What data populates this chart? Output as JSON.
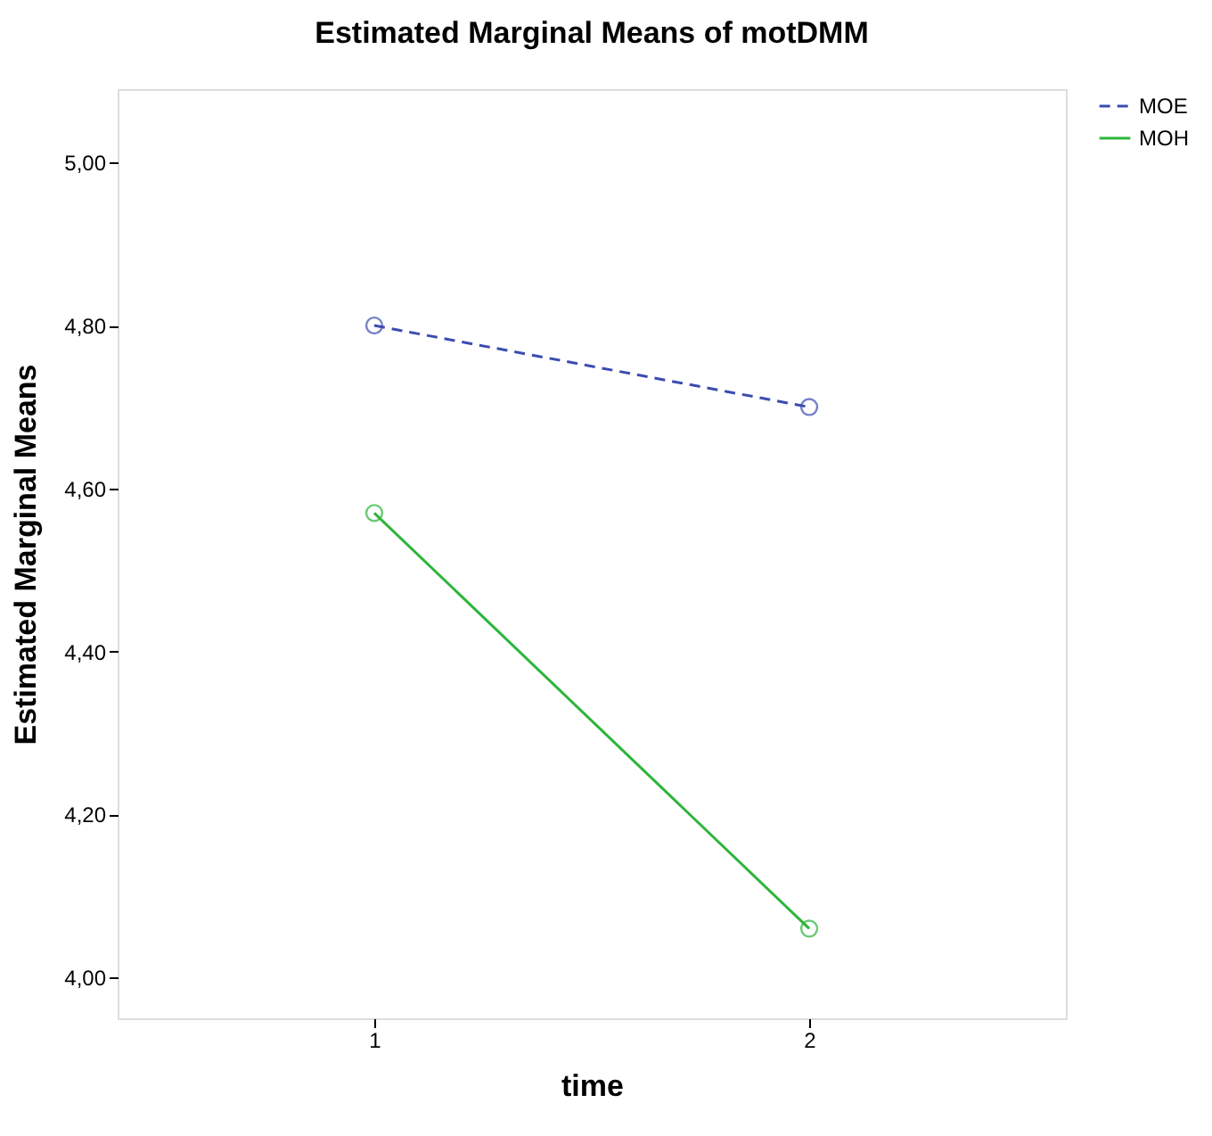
{
  "chart_data": {
    "type": "line",
    "title": "Estimated Marginal Means of motDMM",
    "xlabel": "time",
    "ylabel": "Estimated Marginal Means",
    "categories": [
      "1",
      "2"
    ],
    "series": [
      {
        "name": "MOE",
        "color": "#3b4cb0",
        "values": [
          4.8,
          4.7
        ],
        "line_style": "dashed"
      },
      {
        "name": "MOH",
        "color": "#2db53a",
        "values": [
          4.57,
          4.06
        ],
        "line_style": "solid"
      }
    ],
    "ylim": [
      3.95,
      5.09
    ],
    "yticks": [
      {
        "value": 4.0,
        "label": "4,00"
      },
      {
        "value": 4.2,
        "label": "4,20"
      },
      {
        "value": 4.4,
        "label": "4,40"
      },
      {
        "value": 4.6,
        "label": "4,60"
      },
      {
        "value": 4.8,
        "label": "4,80"
      },
      {
        "value": 5.0,
        "label": "5,00"
      }
    ],
    "marker": "circle",
    "grid": false,
    "legend": "top right"
  }
}
